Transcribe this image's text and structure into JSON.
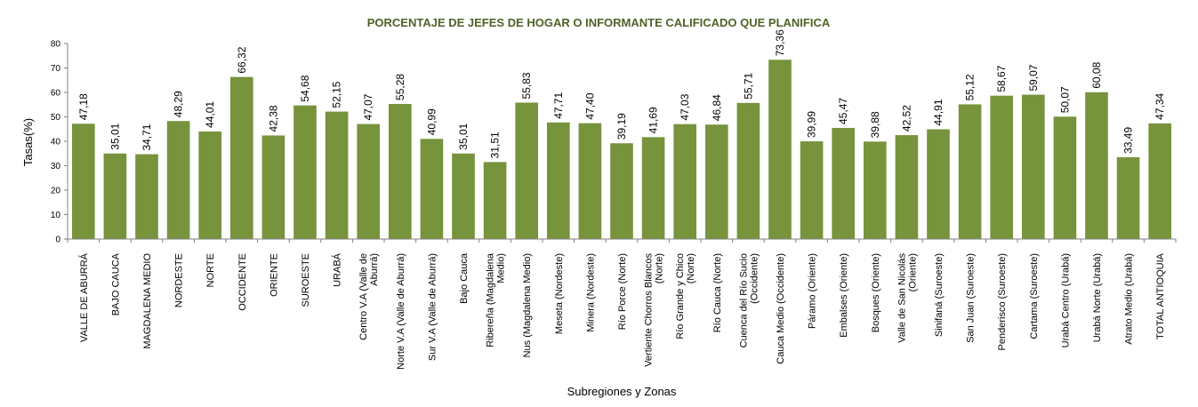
{
  "colors": {
    "bar": "#77933c",
    "title": "#4f6228",
    "axis": "#808080"
  },
  "chart_data": {
    "type": "bar",
    "title": "PORCENTAJE DE JEFES DE HOGAR O INFORMANTE CALIFICADO QUE PLANIFICA",
    "xlabel": "Subregiones y Zonas",
    "ylabel": "Tasas(%)",
    "ylim": [
      0,
      80
    ],
    "yticks": [
      "0",
      "10",
      "20",
      "30",
      "40",
      "50",
      "60",
      "70",
      "80"
    ],
    "grid": false,
    "categories": [
      [
        "VALLE DE ABURRÁ"
      ],
      [
        "BAJO CAUCA"
      ],
      [
        "MAGDALENA MEDIO"
      ],
      [
        "NORDESTE"
      ],
      [
        "NORTE"
      ],
      [
        "OCCIDENTE"
      ],
      [
        "ORIENTE"
      ],
      [
        "SUROESTE"
      ],
      [
        "URABÁ"
      ],
      [
        "Centro V.A (Valle de",
        "Aburrá)"
      ],
      [
        "Norte V.A (Valle de Aburrá)"
      ],
      [
        "Sur V.A (Valle de Aburrá)"
      ],
      [
        "Bajo Cauca"
      ],
      [
        "Ribereña (Magdalena",
        "Medio)"
      ],
      [
        "Nus (Magdalena Medio)"
      ],
      [
        "Meseta (Nordeste)"
      ],
      [
        "Minera (Nordeste)"
      ],
      [
        "Río Porce (Norte)"
      ],
      [
        "Vertiente Chorros Blancos",
        "(Norte)"
      ],
      [
        "Río Grande y Chico",
        "(Norte)"
      ],
      [
        "Río Cauca (Norte)"
      ],
      [
        "Cuenca del Río Sucio",
        "(Occidente)"
      ],
      [
        "Cauca Medio (Occidente)"
      ],
      [
        "Páramo (Oriente)"
      ],
      [
        "Embalses (Oriente)"
      ],
      [
        "Bosques (Oriente)"
      ],
      [
        "Valle de San Nicolás",
        "(Oriente)"
      ],
      [
        "Sinifaná (Suroeste)"
      ],
      [
        "San Juan (Suroeste)"
      ],
      [
        "Penderisco (Suroeste)"
      ],
      [
        "Cartama (Suroeste)"
      ],
      [
        "Urabá Centro (Urabá)"
      ],
      [
        "Urabá Norte (Urabá)"
      ],
      [
        "Atrato Medio (Urabá)"
      ],
      [
        "TOTAL ANTIOQUIA"
      ]
    ],
    "values": [
      47.18,
      35.01,
      34.71,
      48.29,
      44.01,
      66.32,
      42.38,
      54.68,
      52.15,
      47.07,
      55.28,
      40.99,
      35.01,
      31.51,
      55.83,
      47.71,
      47.4,
      39.19,
      41.69,
      47.03,
      46.84,
      55.71,
      73.36,
      39.99,
      45.47,
      39.88,
      42.52,
      44.91,
      55.12,
      58.67,
      59.07,
      50.07,
      60.08,
      33.49,
      47.34
    ],
    "data_labels": [
      "47,18",
      "35,01",
      "34,71",
      "48,29",
      "44,01",
      "66,32",
      "42,38",
      "54,68",
      "52,15",
      "47,07",
      "55,28",
      "40,99",
      "35,01",
      "31,51",
      "55,83",
      "47,71",
      "47,40",
      "39,19",
      "41,69",
      "47,03",
      "46,84",
      "55,71",
      "73,36",
      "39,99",
      "45,47",
      "39,88",
      "42,52",
      "44,91",
      "55,12",
      "58,67",
      "59,07",
      "50,07",
      "60,08",
      "33,49",
      "47,34"
    ]
  }
}
